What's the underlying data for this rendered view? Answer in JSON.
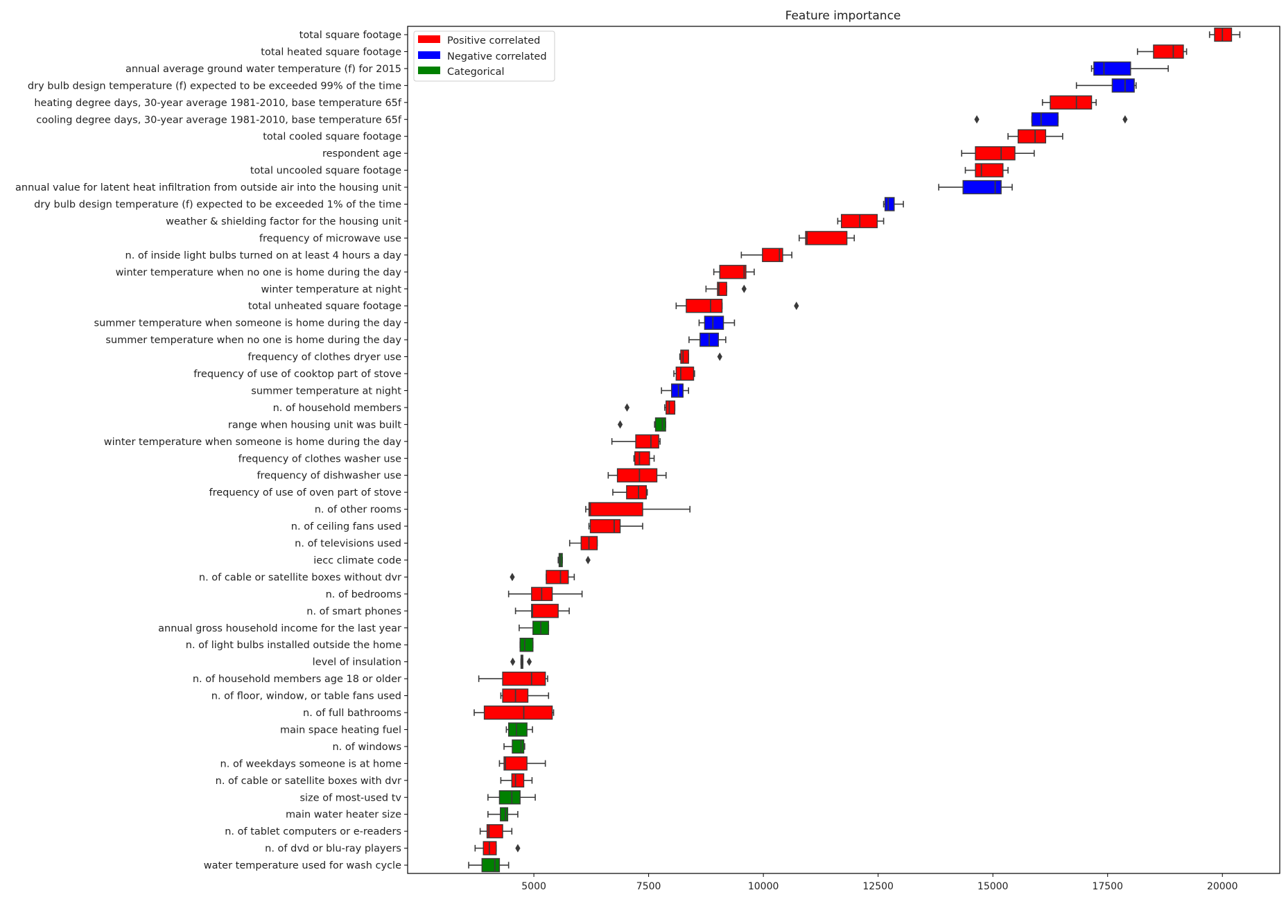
{
  "chart_data": {
    "type": "box",
    "orientation": "horizontal",
    "title": "Feature importance",
    "xlabel": "",
    "ylabel": "",
    "xlim": [
      2250,
      21250
    ],
    "xticks": [
      5000,
      7500,
      10000,
      12500,
      15000,
      17500,
      20000
    ],
    "grid": false,
    "legend": {
      "placement": "top-left",
      "entries": [
        {
          "label": "Positive correlated",
          "color": "#ff0000"
        },
        {
          "label": "Negative correlated",
          "color": "#0000ff"
        },
        {
          "label": "Categorical",
          "color": "#008000"
        }
      ]
    },
    "colors": {
      "positive": "#ff0000",
      "negative": "#0000ff",
      "categorical": "#008000"
    },
    "features": [
      {
        "name": "total square footage",
        "group": "positive",
        "whisker_low": 19720,
        "q1": 19830,
        "median": 20000,
        "q3": 20200,
        "whisker_high": 20380,
        "outliers": []
      },
      {
        "name": "total heated square footage",
        "group": "positive",
        "whisker_low": 18150,
        "q1": 18500,
        "median": 18930,
        "q3": 19150,
        "whisker_high": 19220,
        "outliers": []
      },
      {
        "name": "annual average ground water temperature (f) for 2015",
        "group": "negative",
        "whisker_low": 17150,
        "q1": 17200,
        "median": 17420,
        "q3": 18000,
        "whisker_high": 18820,
        "outliers": []
      },
      {
        "name": "dry bulb design temperature (f) expected to be exceeded 99% of the time",
        "group": "negative",
        "whisker_low": 16820,
        "q1": 17600,
        "median": 17880,
        "q3": 18080,
        "whisker_high": 18120,
        "outliers": []
      },
      {
        "name": "heating degree days, 30-year average 1981-2010, base temperature 65f",
        "group": "positive",
        "whisker_low": 16080,
        "q1": 16250,
        "median": 16820,
        "q3": 17150,
        "whisker_high": 17250,
        "outliers": []
      },
      {
        "name": "cooling degree days, 30-year average 1981-2010, base temperature 65f",
        "group": "negative",
        "whisker_low": 15850,
        "q1": 15850,
        "median": 16050,
        "q3": 16420,
        "whisker_high": 16420,
        "outliers": [
          14650,
          17880
        ]
      },
      {
        "name": "total cooled square footage",
        "group": "positive",
        "whisker_low": 15330,
        "q1": 15550,
        "median": 15920,
        "q3": 16150,
        "whisker_high": 16520,
        "outliers": []
      },
      {
        "name": "respondent age",
        "group": "positive",
        "whisker_low": 14320,
        "q1": 14620,
        "median": 15180,
        "q3": 15480,
        "whisker_high": 15900,
        "outliers": []
      },
      {
        "name": "total uncooled square footage",
        "group": "positive",
        "whisker_low": 14400,
        "q1": 14620,
        "median": 14750,
        "q3": 15220,
        "whisker_high": 15330,
        "outliers": []
      },
      {
        "name": "annual value for latent heat infiltration from outside air into the housing unit",
        "group": "negative",
        "whisker_low": 13820,
        "q1": 14350,
        "median": 15050,
        "q3": 15180,
        "whisker_high": 15420,
        "outliers": []
      },
      {
        "name": "dry bulb design temperature (f) expected to be exceeded 1% of the time",
        "group": "negative",
        "whisker_low": 12620,
        "q1": 12650,
        "median": 12720,
        "q3": 12850,
        "whisker_high": 13050,
        "outliers": []
      },
      {
        "name": "weather & shielding factor for the housing unit",
        "group": "positive",
        "whisker_low": 11620,
        "q1": 11700,
        "median": 12100,
        "q3": 12480,
        "whisker_high": 12620,
        "outliers": []
      },
      {
        "name": "frequency of microwave use",
        "group": "positive",
        "whisker_low": 10780,
        "q1": 10920,
        "median": 10950,
        "q3": 11820,
        "whisker_high": 11980,
        "outliers": []
      },
      {
        "name": "n. of inside light bulbs turned on at least 4 hours a day",
        "group": "positive",
        "whisker_low": 9520,
        "q1": 9980,
        "median": 10350,
        "q3": 10420,
        "whisker_high": 10620,
        "outliers": []
      },
      {
        "name": "winter temperature when no one is home during the day",
        "group": "positive",
        "whisker_low": 8920,
        "q1": 9050,
        "median": 9580,
        "q3": 9620,
        "whisker_high": 9800,
        "outliers": []
      },
      {
        "name": "winter temperature at night",
        "group": "positive",
        "whisker_low": 8750,
        "q1": 9000,
        "median": 9030,
        "q3": 9200,
        "whisker_high": 9200,
        "outliers": [
          9580
        ]
      },
      {
        "name": "total unheated square footage",
        "group": "positive",
        "whisker_low": 8100,
        "q1": 8320,
        "median": 8850,
        "q3": 9100,
        "whisker_high": 9100,
        "outliers": [
          10720
        ]
      },
      {
        "name": "summer temperature when someone is home during the day",
        "group": "negative",
        "whisker_low": 8600,
        "q1": 8720,
        "median": 8900,
        "q3": 9130,
        "whisker_high": 9370,
        "outliers": []
      },
      {
        "name": "summer temperature when no one is home during the day",
        "group": "negative",
        "whisker_low": 8380,
        "q1": 8620,
        "median": 8820,
        "q3": 9020,
        "whisker_high": 9180,
        "outliers": []
      },
      {
        "name": "frequency of clothes dryer use",
        "group": "positive",
        "whisker_low": 8180,
        "q1": 8200,
        "median": 8250,
        "q3": 8370,
        "whisker_high": 8370,
        "outliers": [
          9050
        ]
      },
      {
        "name": "frequency of use of cooktop part of stove",
        "group": "positive",
        "whisker_low": 8050,
        "q1": 8100,
        "median": 8200,
        "q3": 8480,
        "whisker_high": 8500,
        "outliers": []
      },
      {
        "name": "summer temperature at night",
        "group": "negative",
        "whisker_low": 7780,
        "q1": 8000,
        "median": 8150,
        "q3": 8250,
        "whisker_high": 8370,
        "outliers": []
      },
      {
        "name": "n. of household members",
        "group": "positive",
        "whisker_low": 7850,
        "q1": 7880,
        "median": 7950,
        "q3": 8070,
        "whisker_high": 8070,
        "outliers": [
          7030
        ]
      },
      {
        "name": "range when housing unit was built",
        "group": "categorical",
        "whisker_low": 7630,
        "q1": 7650,
        "median": 7800,
        "q3": 7870,
        "whisker_high": 7870,
        "outliers": [
          6880
        ]
      },
      {
        "name": "winter temperature when someone is home during the day",
        "group": "positive",
        "whisker_low": 6700,
        "q1": 7220,
        "median": 7550,
        "q3": 7720,
        "whisker_high": 7750,
        "outliers": []
      },
      {
        "name": "frequency of clothes washer use",
        "group": "positive",
        "whisker_low": 7180,
        "q1": 7200,
        "median": 7300,
        "q3": 7520,
        "whisker_high": 7620,
        "outliers": []
      },
      {
        "name": "frequency of dishwasher use",
        "group": "positive",
        "whisker_low": 6620,
        "q1": 6820,
        "median": 7300,
        "q3": 7680,
        "whisker_high": 7880,
        "outliers": []
      },
      {
        "name": "frequency of use of oven part of stove",
        "group": "positive",
        "whisker_low": 6720,
        "q1": 7020,
        "median": 7280,
        "q3": 7450,
        "whisker_high": 7470,
        "outliers": []
      },
      {
        "name": "n. of other rooms",
        "group": "positive",
        "whisker_low": 6130,
        "q1": 6200,
        "median": 6230,
        "q3": 7370,
        "whisker_high": 8400,
        "outliers": []
      },
      {
        "name": "n. of ceiling fans used",
        "group": "positive",
        "whisker_low": 6200,
        "q1": 6230,
        "median": 6750,
        "q3": 6880,
        "whisker_high": 7370,
        "outliers": []
      },
      {
        "name": "n. of televisions used",
        "group": "positive",
        "whisker_low": 5780,
        "q1": 6030,
        "median": 6200,
        "q3": 6380,
        "whisker_high": 6380,
        "outliers": []
      },
      {
        "name": "iecc climate code",
        "group": "categorical",
        "whisker_low": 5530,
        "q1": 5550,
        "median": 5580,
        "q3": 5620,
        "whisker_high": 5620,
        "outliers": [
          6180
        ]
      },
      {
        "name": "n. of cable or satellite boxes without dvr",
        "group": "positive",
        "whisker_low": 5270,
        "q1": 5270,
        "median": 5580,
        "q3": 5750,
        "whisker_high": 5880,
        "outliers": [
          4530
        ]
      },
      {
        "name": "n. of bedrooms",
        "group": "positive",
        "whisker_low": 4450,
        "q1": 4950,
        "median": 5170,
        "q3": 5400,
        "whisker_high": 6050,
        "outliers": []
      },
      {
        "name": "n. of smart phones",
        "group": "positive",
        "whisker_low": 4600,
        "q1": 4950,
        "median": 4970,
        "q3": 5530,
        "whisker_high": 5770,
        "outliers": []
      },
      {
        "name": "annual gross household income for the last year",
        "group": "categorical",
        "whisker_low": 4680,
        "q1": 4980,
        "median": 5150,
        "q3": 5320,
        "whisker_high": 5320,
        "outliers": []
      },
      {
        "name": "n. of light bulbs installed outside the home",
        "group": "categorical",
        "whisker_low": 4700,
        "q1": 4700,
        "median": 4800,
        "q3": 4980,
        "whisker_high": 4980,
        "outliers": []
      },
      {
        "name": "level of insulation",
        "group": "categorical",
        "whisker_low": 4720,
        "q1": 4720,
        "median": 4740,
        "q3": 4760,
        "whisker_high": 4760,
        "outliers": [
          4540,
          4900
        ]
      },
      {
        "name": "n. of household members age 18 or older",
        "group": "positive",
        "whisker_low": 3800,
        "q1": 4320,
        "median": 4950,
        "q3": 5250,
        "whisker_high": 5300,
        "outliers": []
      },
      {
        "name": "n. of floor, window, or table fans used",
        "group": "positive",
        "whisker_low": 4280,
        "q1": 4320,
        "median": 4600,
        "q3": 4870,
        "whisker_high": 5320,
        "outliers": []
      },
      {
        "name": "n. of full bathrooms",
        "group": "positive",
        "whisker_low": 3700,
        "q1": 3920,
        "median": 4780,
        "q3": 5400,
        "whisker_high": 5430,
        "outliers": []
      },
      {
        "name": "main space heating fuel",
        "group": "categorical",
        "whisker_low": 4400,
        "q1": 4450,
        "median": 4620,
        "q3": 4850,
        "whisker_high": 4970,
        "outliers": []
      },
      {
        "name": "n. of windows",
        "group": "categorical",
        "whisker_low": 4350,
        "q1": 4530,
        "median": 4720,
        "q3": 4780,
        "whisker_high": 4800,
        "outliers": []
      },
      {
        "name": "n. of weekdays someone is at home",
        "group": "positive",
        "whisker_low": 4250,
        "q1": 4350,
        "median": 4380,
        "q3": 4850,
        "whisker_high": 5250,
        "outliers": []
      },
      {
        "name": "n. of cable or satellite boxes with dvr",
        "group": "positive",
        "whisker_low": 4280,
        "q1": 4520,
        "median": 4600,
        "q3": 4780,
        "whisker_high": 4960,
        "outliers": []
      },
      {
        "name": "size of most-used tv",
        "group": "categorical",
        "whisker_low": 4000,
        "q1": 4250,
        "median": 4520,
        "q3": 4700,
        "whisker_high": 5030,
        "outliers": []
      },
      {
        "name": "main water heater size",
        "group": "categorical",
        "whisker_low": 4000,
        "q1": 4270,
        "median": 4380,
        "q3": 4430,
        "whisker_high": 4650,
        "outliers": []
      },
      {
        "name": "n. of tablet computers or e-readers",
        "group": "positive",
        "whisker_low": 3830,
        "q1": 3980,
        "median": 4020,
        "q3": 4320,
        "whisker_high": 4520,
        "outliers": []
      },
      {
        "name": "n. of dvd or blu-ray players",
        "group": "positive",
        "whisker_low": 3720,
        "q1": 3900,
        "median": 4030,
        "q3": 4180,
        "whisker_high": 4180,
        "outliers": [
          4650
        ]
      },
      {
        "name": "water temperature used for wash cycle",
        "group": "categorical",
        "whisker_low": 3580,
        "q1": 3870,
        "median": 4150,
        "q3": 4250,
        "whisker_high": 4450,
        "outliers": []
      }
    ]
  }
}
